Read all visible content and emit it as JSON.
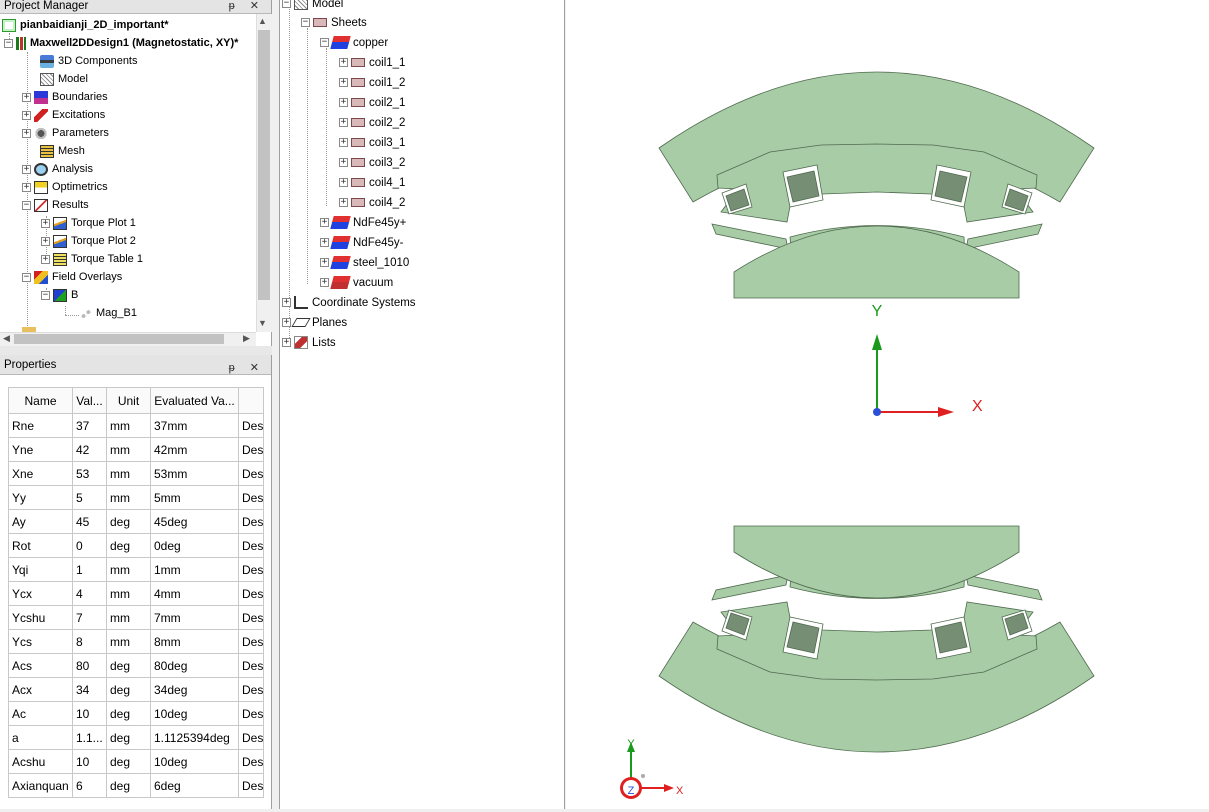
{
  "project_manager": {
    "title": "Project Manager",
    "title_buttons": "ᵽ ✕",
    "items": [
      {
        "label": "pianbaidianji_2D_important*",
        "bold": true
      },
      {
        "label": "Maxwell2DDesign1 (Magnetostatic, XY)*",
        "bold": true
      },
      {
        "label": "3D Components"
      },
      {
        "label": "Model"
      },
      {
        "label": "Boundaries"
      },
      {
        "label": "Excitations"
      },
      {
        "label": "Parameters"
      },
      {
        "label": "Mesh"
      },
      {
        "label": "Analysis"
      },
      {
        "label": "Optimetrics"
      },
      {
        "label": "Results"
      },
      {
        "label": "Torque Plot 1"
      },
      {
        "label": "Torque Plot 2"
      },
      {
        "label": "Torque Table 1"
      },
      {
        "label": "Field Overlays"
      },
      {
        "label": "B"
      },
      {
        "label": "Mag_B1"
      }
    ]
  },
  "properties": {
    "title": "Properties",
    "columns": [
      "Name",
      "Val...",
      "Unit",
      "Evaluated Va...",
      ""
    ],
    "rows": [
      [
        "Rne",
        "37",
        "mm",
        "37mm",
        "Des"
      ],
      [
        "Yne",
        "42",
        "mm",
        "42mm",
        "Des"
      ],
      [
        "Xne",
        "53",
        "mm",
        "53mm",
        "Des"
      ],
      [
        "Yy",
        "5",
        "mm",
        "5mm",
        "Des"
      ],
      [
        "Ay",
        "45",
        "deg",
        "45deg",
        "Des"
      ],
      [
        "Rot",
        "0",
        "deg",
        "0deg",
        "Des"
      ],
      [
        "Yqi",
        "1",
        "mm",
        "1mm",
        "Des"
      ],
      [
        "Ycx",
        "4",
        "mm",
        "4mm",
        "Des"
      ],
      [
        "Ycshu",
        "7",
        "mm",
        "7mm",
        "Des"
      ],
      [
        "Ycs",
        "8",
        "mm",
        "8mm",
        "Des"
      ],
      [
        "Acs",
        "80",
        "deg",
        "80deg",
        "Des"
      ],
      [
        "Acx",
        "34",
        "deg",
        "34deg",
        "Des"
      ],
      [
        "Ac",
        "10",
        "deg",
        "10deg",
        "Des"
      ],
      [
        "a",
        "1.1...",
        "deg",
        "1.1125394deg",
        "Des"
      ],
      [
        "Acshu",
        "10",
        "deg",
        "10deg",
        "Des"
      ],
      [
        "Axianquan",
        "6",
        "deg",
        "6deg",
        "Des"
      ]
    ]
  },
  "model_tree": {
    "items": [
      {
        "label": "Model"
      },
      {
        "label": "Sheets"
      },
      {
        "label": "copper"
      },
      {
        "label": "coil1_1"
      },
      {
        "label": "coil1_2"
      },
      {
        "label": "coil2_1"
      },
      {
        "label": "coil2_2"
      },
      {
        "label": "coil3_1"
      },
      {
        "label": "coil3_2"
      },
      {
        "label": "coil4_1"
      },
      {
        "label": "coil4_2"
      },
      {
        "label": "NdFe45y+"
      },
      {
        "label": "NdFe45y-"
      },
      {
        "label": "steel_1010"
      },
      {
        "label": "vacuum"
      },
      {
        "label": "Coordinate Systems"
      },
      {
        "label": "Planes"
      },
      {
        "label": "Lists"
      }
    ]
  },
  "viewport": {
    "axis_y_label": "Y",
    "axis_x_label": "X",
    "triad_y": "Y",
    "triad_x": "X",
    "triad_z": "Z",
    "colors": {
      "part_fill": "#a8cca6",
      "part_stroke": "#4f6a4e",
      "coil_fill": "#768f74",
      "axis_y": "#1a9a1a",
      "axis_x": "#e02020",
      "axis_z": "#2a50d8"
    }
  }
}
